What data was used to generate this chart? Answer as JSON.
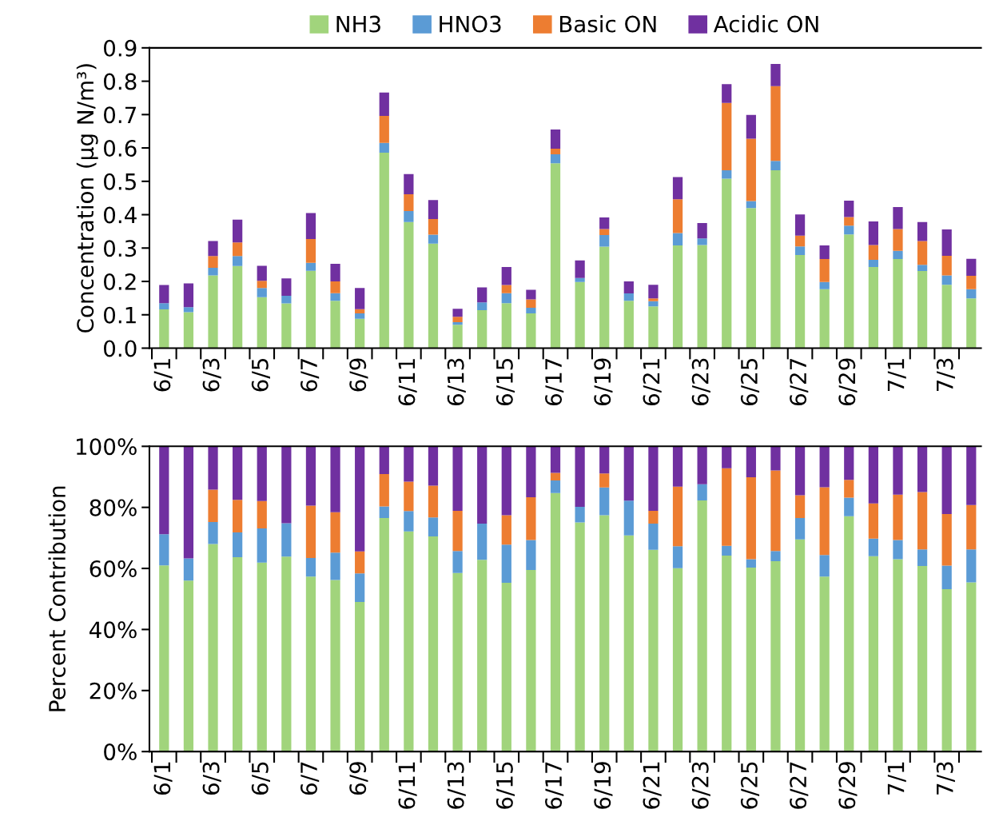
{
  "chart_data": [
    {
      "type": "bar",
      "stacked": true,
      "ylabel": "Concentration (µg N/m³)",
      "legend": "top",
      "categories": [
        "6/1",
        null,
        "6/3",
        null,
        "6/5",
        null,
        "6/7",
        null,
        "6/9",
        null,
        "6/11",
        null,
        "6/13",
        null,
        "6/15",
        null,
        "6/17",
        null,
        "6/19",
        null,
        "6/21",
        null,
        "6/23",
        null,
        "6/25",
        null,
        "6/27",
        null,
        "6/29",
        null,
        "7/1",
        null,
        "7/3",
        null
      ],
      "ylim": [
        0,
        0.9
      ],
      "yticks": [
        {
          "value": 0,
          "label": "0.0"
        },
        {
          "value": 0.1,
          "label": "0.1"
        },
        {
          "value": 0.2,
          "label": "0.2"
        },
        {
          "value": 0.3,
          "label": "0.3"
        },
        {
          "value": 0.4,
          "label": "0.4"
        },
        {
          "value": 0.5,
          "label": "0.5"
        },
        {
          "value": 0.6,
          "label": "0.6"
        },
        {
          "value": 0.7,
          "label": "0.7"
        },
        {
          "value": 0.8,
          "label": "0.8"
        },
        {
          "value": 0.9,
          "label": "0.9"
        }
      ],
      "series": [
        {
          "name": "NH3",
          "color": "#a1d47c",
          "values": [
            0.116,
            0.108,
            0.218,
            0.246,
            0.153,
            0.134,
            0.232,
            0.142,
            0.088,
            0.586,
            0.378,
            0.313,
            0.07,
            0.114,
            0.135,
            0.104,
            0.554,
            0.198,
            0.304,
            0.142,
            0.125,
            0.308,
            0.309,
            0.508,
            0.42,
            0.533,
            0.279,
            0.177,
            0.341,
            0.243,
            0.267,
            0.231,
            0.19,
            0.149
          ]
        },
        {
          "name": "HNO3",
          "color": "#5b9bd5",
          "values": [
            0.019,
            0.015,
            0.023,
            0.03,
            0.027,
            0.023,
            0.024,
            0.023,
            0.016,
            0.029,
            0.033,
            0.027,
            0.008,
            0.023,
            0.03,
            0.017,
            0.027,
            0.012,
            0.035,
            0.022,
            0.016,
            0.037,
            0.02,
            0.025,
            0.021,
            0.028,
            0.026,
            0.021,
            0.026,
            0.022,
            0.025,
            0.019,
            0.028,
            0.028
          ]
        },
        {
          "name": "Basic ON",
          "color": "#ed7d31",
          "values": [
            0,
            0,
            0.035,
            0.041,
            0.022,
            0,
            0.071,
            0.035,
            0.013,
            0.081,
            0.05,
            0.047,
            0.016,
            0,
            0.024,
            0.025,
            0.017,
            0,
            0.018,
            0,
            0.008,
            0.101,
            0,
            0.202,
            0.187,
            0.224,
            0.032,
            0.069,
            0.026,
            0.044,
            0.065,
            0.071,
            0.059,
            0.04
          ]
        },
        {
          "name": "Acidic ON",
          "color": "#7030a0",
          "values": [
            0.054,
            0.071,
            0.045,
            0.068,
            0.045,
            0.052,
            0.078,
            0.053,
            0.063,
            0.07,
            0.061,
            0.057,
            0.024,
            0.045,
            0.054,
            0.029,
            0.057,
            0.053,
            0.035,
            0.036,
            0.041,
            0.067,
            0.046,
            0.056,
            0.071,
            0.067,
            0.064,
            0.041,
            0.049,
            0.071,
            0.066,
            0.057,
            0.079,
            0.051
          ]
        }
      ]
    },
    {
      "type": "bar",
      "stacked": true,
      "ylabel": "Percent Contribution",
      "categories": [
        "6/1",
        null,
        "6/3",
        null,
        "6/5",
        null,
        "6/7",
        null,
        "6/9",
        null,
        "6/11",
        null,
        "6/13",
        null,
        "6/15",
        null,
        "6/17",
        null,
        "6/19",
        null,
        "6/21",
        null,
        "6/23",
        null,
        "6/25",
        null,
        "6/27",
        null,
        "6/29",
        null,
        "7/1",
        null,
        "7/3",
        null
      ],
      "ylim": [
        0,
        100
      ],
      "yticks": [
        {
          "value": 0,
          "label": "0%"
        },
        {
          "value": 20,
          "label": "20%"
        },
        {
          "value": 40,
          "label": "40%"
        },
        {
          "value": 60,
          "label": "60%"
        },
        {
          "value": 80,
          "label": "80%"
        },
        {
          "value": 100,
          "label": "100%"
        }
      ],
      "series": [
        {
          "color": "#a1d47c",
          "values": [
            61.0,
            56.0,
            68.0,
            63.7,
            61.9,
            63.9,
            57.3,
            56.2,
            49.0,
            76.5,
            72.1,
            70.5,
            58.5,
            62.8,
            55.3,
            59.5,
            84.7,
            75.1,
            77.4,
            70.8,
            66.1,
            60.1,
            82.3,
            64.2,
            60.3,
            62.4,
            69.5,
            57.3,
            77.1,
            64.0,
            63.0,
            60.8,
            53.2,
            55.4
          ]
        },
        {
          "color": "#5b9bd5",
          "values": [
            10.2,
            7.3,
            7.2,
            8.1,
            11.2,
            10.9,
            6.1,
            9.0,
            9.4,
            3.8,
            6.7,
            6.2,
            7.2,
            11.9,
            12.5,
            9.8,
            4.1,
            5.1,
            9.1,
            11.4,
            8.6,
            7.2,
            5.3,
            3.2,
            2.7,
            3.3,
            7.0,
            7.1,
            6.1,
            5.8,
            6.3,
            5.4,
            7.7,
            10.8
          ]
        },
        {
          "color": "#ed7d31",
          "values": [
            0,
            0,
            10.6,
            10.7,
            9.0,
            0,
            17.2,
            13.2,
            7.2,
            10.6,
            9.6,
            10.4,
            13.2,
            0,
            9.6,
            14.0,
            2.5,
            0,
            4.6,
            0,
            4.2,
            19.5,
            0,
            25.4,
            26.9,
            26.4,
            7.5,
            22.2,
            5.8,
            11.5,
            14.9,
            18.8,
            16.9,
            14.6
          ]
        },
        {
          "color": "#7030a0",
          "values": [
            28.8,
            36.7,
            14.2,
            17.5,
            17.9,
            25.2,
            19.4,
            21.6,
            34.4,
            9.1,
            11.6,
            12.9,
            21.1,
            25.3,
            22.6,
            16.7,
            8.7,
            19.8,
            8.9,
            17.8,
            21.1,
            13.2,
            12.4,
            7.2,
            10.1,
            7.9,
            16.0,
            13.4,
            11.0,
            18.7,
            15.8,
            15.0,
            22.2,
            19.2
          ]
        }
      ]
    }
  ]
}
